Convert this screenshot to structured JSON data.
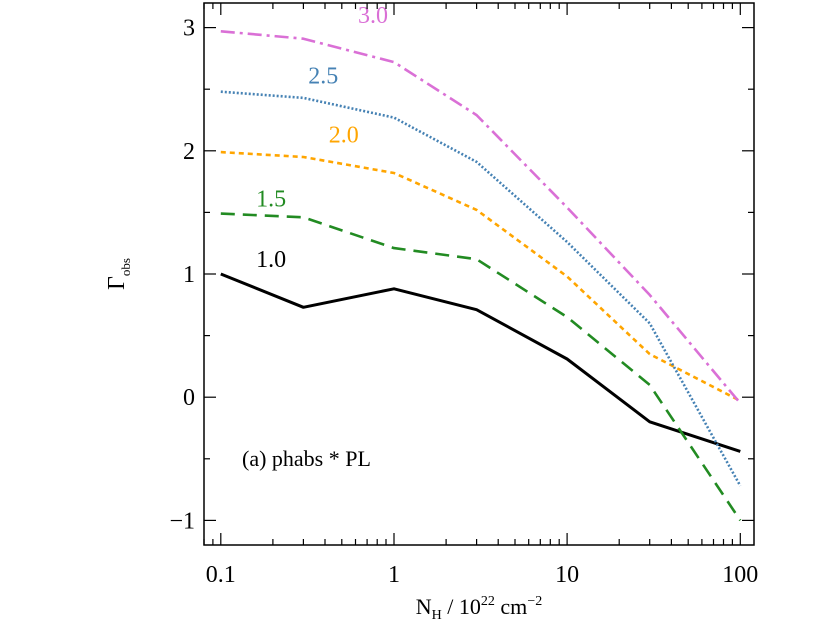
{
  "chart_data": {
    "type": "line",
    "title": "",
    "xlabel": {
      "base": "N",
      "sub": "H",
      "middle": " / 10",
      "sup": "22",
      "unit": " cm",
      "unit_sup": "−2"
    },
    "ylabel": {
      "base": "Γ",
      "sub": "obs"
    },
    "xscale": "log",
    "xlim": [
      0.08,
      120
    ],
    "ylim": [
      -1.2,
      3.2
    ],
    "x_ticks": [
      {
        "value": 0.1,
        "label": "0.1"
      },
      {
        "value": 1,
        "label": "1"
      },
      {
        "value": 10,
        "label": "10"
      },
      {
        "value": 100,
        "label": "100"
      }
    ],
    "y_ticks": [
      {
        "value": -1,
        "label": "−1"
      },
      {
        "value": 0,
        "label": "0"
      },
      {
        "value": 1,
        "label": "1"
      },
      {
        "value": 2,
        "label": "2"
      },
      {
        "value": 3,
        "label": "3"
      }
    ],
    "annotation": "(a)  phabs * PL",
    "x": [
      0.1,
      0.3,
      1,
      3,
      10,
      30,
      100
    ],
    "series": [
      {
        "name": "1.0",
        "color": "#000000",
        "dash": "",
        "values": [
          1.0,
          0.73,
          0.88,
          0.71,
          0.31,
          -0.2,
          -0.44
        ],
        "label_pos": [
          0.16,
          1.0
        ]
      },
      {
        "name": "1.5",
        "color": "#228b22",
        "dash": "14,8",
        "values": [
          1.49,
          1.46,
          1.21,
          1.12,
          0.65,
          0.1,
          -1.0
        ],
        "label_pos": [
          0.16,
          1.49
        ]
      },
      {
        "name": "2.0",
        "color": "#ffa500",
        "dash": "5,4",
        "values": [
          1.99,
          1.95,
          1.82,
          1.52,
          0.98,
          0.35,
          -0.03
        ],
        "label_pos": [
          0.42,
          2.01
        ]
      },
      {
        "name": "2.5",
        "color": "#4682b4",
        "dash": "2,2",
        "values": [
          2.48,
          2.43,
          2.27,
          1.91,
          1.26,
          0.6,
          -0.72
        ],
        "label_pos": [
          0.32,
          2.49
        ]
      },
      {
        "name": "3.0",
        "color": "#da70d6",
        "dash": "14,5,3,5",
        "values": [
          2.97,
          2.91,
          2.72,
          2.29,
          1.54,
          0.83,
          -0.05
        ],
        "label_pos": [
          0.62,
          2.98
        ]
      }
    ]
  }
}
